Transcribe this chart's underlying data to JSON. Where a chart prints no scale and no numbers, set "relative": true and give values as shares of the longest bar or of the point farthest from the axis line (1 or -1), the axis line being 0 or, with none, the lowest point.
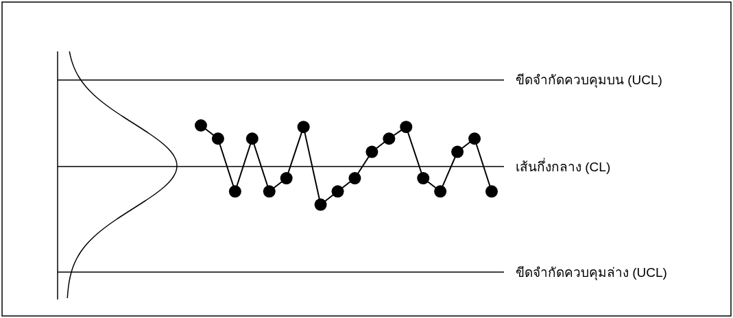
{
  "chart_data": {
    "type": "line",
    "relative": true,
    "marker": "circle",
    "categories": [
      null,
      null,
      null,
      null,
      null,
      null,
      null,
      null,
      null,
      null,
      null,
      null,
      null,
      null,
      null,
      null,
      null,
      null
    ],
    "series": [
      {
        "color": "#000000",
        "values": [
          1,
          0.91,
          0.55,
          0.91,
          0.55,
          0.64,
          0.99,
          0.46,
          0.55,
          0.64,
          0.82,
          0.91,
          0.99,
          0.64,
          0.55,
          0.82,
          0.91,
          0.55
        ]
      }
    ],
    "ref_lines": [
      {
        "axis": "y",
        "value": 1.31,
        "label": "ขีดจำกัดควบคุมบน (UCL)",
        "color": "#000000"
      },
      {
        "axis": "y",
        "value": 0.72,
        "label": "เส้นกึ่งกลาง (CL)",
        "color": "#000000"
      },
      {
        "axis": "y",
        "value": 0,
        "label": "ขีดจำกัดควบคุมล่าง (UCL)",
        "color": "#000000"
      }
    ]
  }
}
